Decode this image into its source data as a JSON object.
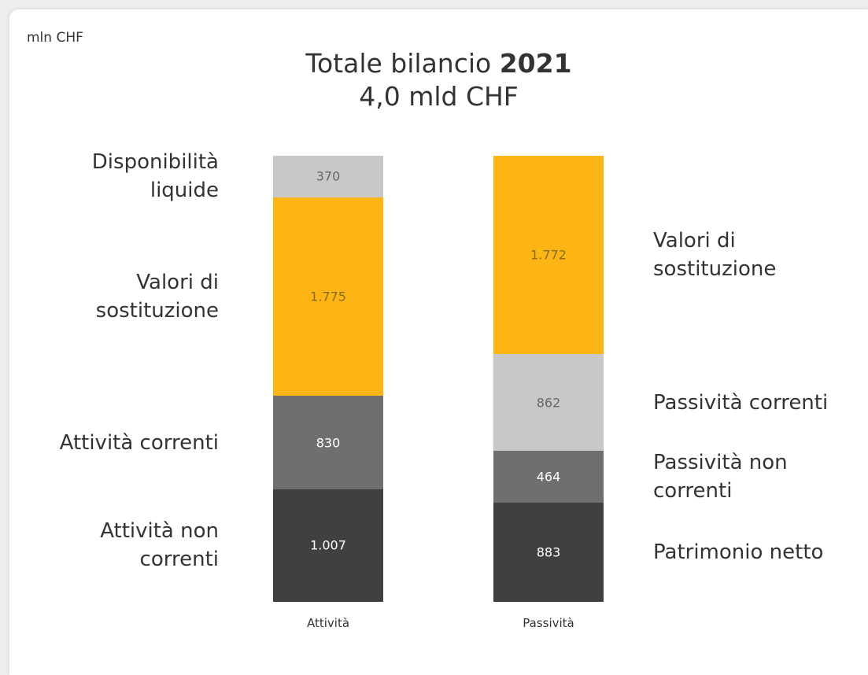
{
  "chart_data": {
    "type": "stacked_bar",
    "unit_label": "mln CHF",
    "title": "Totale bilancio",
    "title_emphasis": "2021",
    "subtitle": "4,0 mld CHF",
    "categories": [
      "Attività",
      "Passività"
    ],
    "series": [
      {
        "name": "Attività non correnti",
        "color": "#404040",
        "values": [
          1007,
          null
        ],
        "value_labels": [
          "1.007",
          null
        ]
      },
      {
        "name": "Attività correnti",
        "color": "#6f6f6f",
        "values": [
          830,
          null
        ]
      },
      {
        "name": "Valori di sostituzione",
        "color": "#fdb515",
        "values": [
          1775,
          null
        ],
        "value_labels": [
          "1.775",
          null
        ]
      },
      {
        "name": "Disponibilità liquide",
        "color": "#c8c8c8",
        "values": [
          370,
          null
        ]
      },
      {
        "name": "Patrimonio netto",
        "color": "#404040",
        "values": [
          null,
          883
        ]
      },
      {
        "name": "Passività non correnti",
        "color": "#6f6f6f",
        "values": [
          null,
          464
        ]
      },
      {
        "name": "Passività correnti",
        "color": "#c8c8c8",
        "values": [
          null,
          862
        ]
      },
      {
        "name": "Valori di sostituzione",
        "color": "#fdb515",
        "values": [
          null,
          1772
        ],
        "value_labels": [
          null,
          "1.772"
        ]
      }
    ]
  }
}
